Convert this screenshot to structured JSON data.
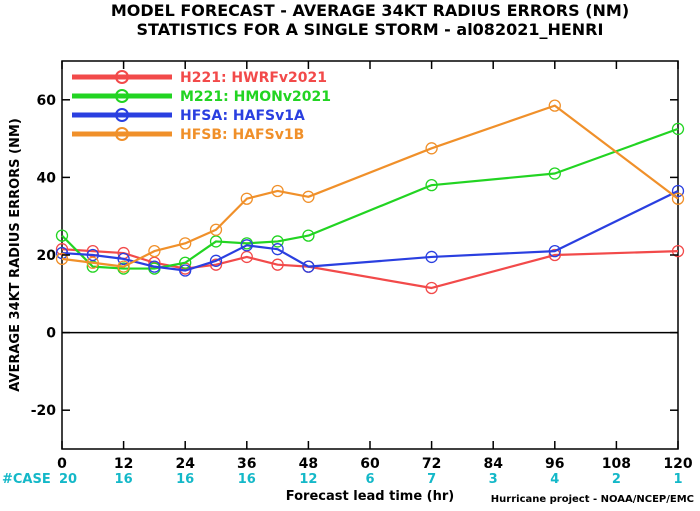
{
  "chart_data": {
    "type": "line",
    "title": "MODEL FORECAST - AVERAGE 34KT RADIUS ERRORS (NM)",
    "subtitle": "STATISTICS FOR A SINGLE STORM - al082021_HENRI",
    "xlabel": "Forecast lead time (hr)",
    "ylabel": "AVERAGE 34KT RADIUS ERRORS (NM)",
    "xlim": [
      0,
      120
    ],
    "ylim": [
      -30,
      70
    ],
    "xticks": [
      0,
      12,
      24,
      36,
      48,
      60,
      72,
      84,
      96,
      108,
      120
    ],
    "yticks": [
      -20,
      0,
      20,
      40,
      60
    ],
    "legend_position": "top-left",
    "case_label": "#CASE",
    "cases": [
      {
        "x": 0,
        "n": "20"
      },
      {
        "x": 12,
        "n": "16"
      },
      {
        "x": 24,
        "n": "16"
      },
      {
        "x": 36,
        "n": "16"
      },
      {
        "x": 48,
        "n": "12"
      },
      {
        "x": 60,
        "n": "6"
      },
      {
        "x": 72,
        "n": "7"
      },
      {
        "x": 84,
        "n": "3"
      },
      {
        "x": 96,
        "n": "4"
      },
      {
        "x": 108,
        "n": "2"
      },
      {
        "x": 120,
        "n": "1"
      }
    ],
    "credit": "Hurricane project - NOAA/NCEP/EMC",
    "series": [
      {
        "name": "H221: HWRFv2021",
        "color": "#f24a4a",
        "x": [
          0,
          6,
          12,
          18,
          24,
          30,
          36,
          42,
          48,
          72,
          96,
          120
        ],
        "y": [
          21.5,
          21,
          20.5,
          18,
          16.5,
          17.5,
          19.5,
          17.5,
          17,
          11.5,
          20,
          21
        ]
      },
      {
        "name": "M221: HMONv2021",
        "color": "#22d422",
        "x": [
          0,
          6,
          12,
          18,
          24,
          30,
          36,
          42,
          48,
          72,
          96,
          120
        ],
        "y": [
          25,
          17,
          16.5,
          16.5,
          18,
          23.5,
          23,
          23.5,
          25,
          38,
          41,
          52.5
        ]
      },
      {
        "name": "HFSA: HAFSv1A",
        "color": "#2a3fe0",
        "x": [
          0,
          6,
          12,
          18,
          24,
          30,
          36,
          42,
          48,
          72,
          96,
          120
        ],
        "y": [
          20.5,
          20,
          19,
          17,
          16,
          18.5,
          22.5,
          21.5,
          17,
          19.5,
          21,
          36.5
        ]
      },
      {
        "name": "HFSB: HAFSv1B",
        "color": "#f0902a",
        "x": [
          0,
          6,
          12,
          18,
          24,
          30,
          36,
          42,
          48,
          72,
          96,
          120
        ],
        "y": [
          19,
          18,
          17,
          21,
          23,
          26.5,
          34.5,
          36.5,
          35,
          47.5,
          58.5,
          34.5
        ]
      }
    ]
  }
}
